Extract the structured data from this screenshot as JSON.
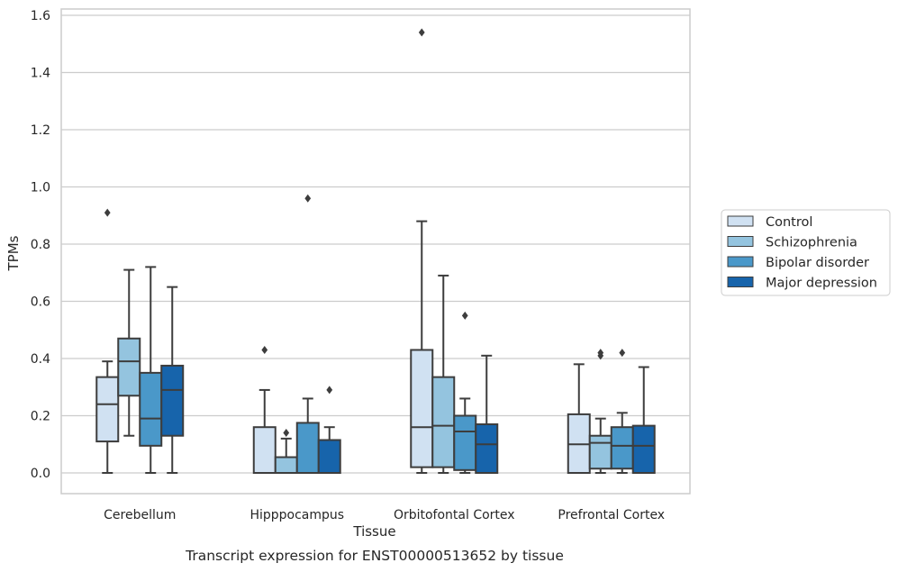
{
  "chart_data": {
    "type": "boxplot",
    "caption": "Transcript expression for ENST00000513652 by tissue",
    "xlabel": "Tissue",
    "ylabel": "TPMs",
    "ylim": [
      -0.075,
      1.62
    ],
    "yticks": [
      "0.0",
      "0.2",
      "0.4",
      "0.6",
      "0.8",
      "1.0",
      "1.2",
      "1.4",
      "1.6"
    ],
    "grid": true,
    "legend_position": "right",
    "categories": [
      "Cerebellum",
      "Hipppocampus",
      "Orbitofontal Cortex",
      "Prefrontal Cortex"
    ],
    "series": [
      {
        "name": "Control",
        "color": "#d0e1f2",
        "boxes": [
          {
            "whislo": 0.0,
            "q1": 0.11,
            "med": 0.24,
            "q3": 0.335,
            "whishi": 0.39,
            "fliers": [
              0.91
            ]
          },
          {
            "whislo": 0.0,
            "q1": 0.0,
            "med": 0.0,
            "q3": 0.16,
            "whishi": 0.29,
            "fliers": [
              0.43
            ]
          },
          {
            "whislo": 0.0,
            "q1": 0.02,
            "med": 0.16,
            "q3": 0.43,
            "whishi": 0.88,
            "fliers": [
              1.54
            ]
          },
          {
            "whislo": 0.0,
            "q1": 0.0,
            "med": 0.1,
            "q3": 0.205,
            "whishi": 0.38,
            "fliers": []
          }
        ]
      },
      {
        "name": "Schizophrenia",
        "color": "#94c4df",
        "boxes": [
          {
            "whislo": 0.13,
            "q1": 0.27,
            "med": 0.39,
            "q3": 0.47,
            "whishi": 0.71,
            "fliers": []
          },
          {
            "whislo": 0.0,
            "q1": 0.0,
            "med": 0.0,
            "q3": 0.055,
            "whishi": 0.12,
            "fliers": [
              0.14
            ]
          },
          {
            "whislo": 0.0,
            "q1": 0.02,
            "med": 0.165,
            "q3": 0.335,
            "whishi": 0.69,
            "fliers": []
          },
          {
            "whislo": 0.0,
            "q1": 0.015,
            "med": 0.105,
            "q3": 0.13,
            "whishi": 0.19,
            "fliers": [
              0.41,
              0.42
            ]
          }
        ]
      },
      {
        "name": "Bipolar disorder",
        "color": "#4a98c9",
        "boxes": [
          {
            "whislo": 0.0,
            "q1": 0.095,
            "med": 0.19,
            "q3": 0.35,
            "whishi": 0.72,
            "fliers": []
          },
          {
            "whislo": 0.0,
            "q1": 0.0,
            "med": 0.0,
            "q3": 0.175,
            "whishi": 0.26,
            "fliers": [
              0.96
            ]
          },
          {
            "whislo": 0.0,
            "q1": 0.01,
            "med": 0.145,
            "q3": 0.2,
            "whishi": 0.26,
            "fliers": [
              0.55
            ]
          },
          {
            "whislo": 0.0,
            "q1": 0.015,
            "med": 0.095,
            "q3": 0.16,
            "whishi": 0.21,
            "fliers": [
              0.42
            ]
          }
        ]
      },
      {
        "name": "Major depression",
        "color": "#1764ab",
        "boxes": [
          {
            "whislo": 0.0,
            "q1": 0.13,
            "med": 0.29,
            "q3": 0.375,
            "whishi": 0.65,
            "fliers": []
          },
          {
            "whislo": 0.0,
            "q1": 0.0,
            "med": 0.0,
            "q3": 0.115,
            "whishi": 0.16,
            "fliers": [
              0.29
            ]
          },
          {
            "whislo": 0.0,
            "q1": 0.0,
            "med": 0.1,
            "q3": 0.17,
            "whishi": 0.41,
            "fliers": []
          },
          {
            "whislo": 0.0,
            "q1": 0.0,
            "med": 0.095,
            "q3": 0.165,
            "whishi": 0.37,
            "fliers": []
          }
        ]
      }
    ]
  }
}
